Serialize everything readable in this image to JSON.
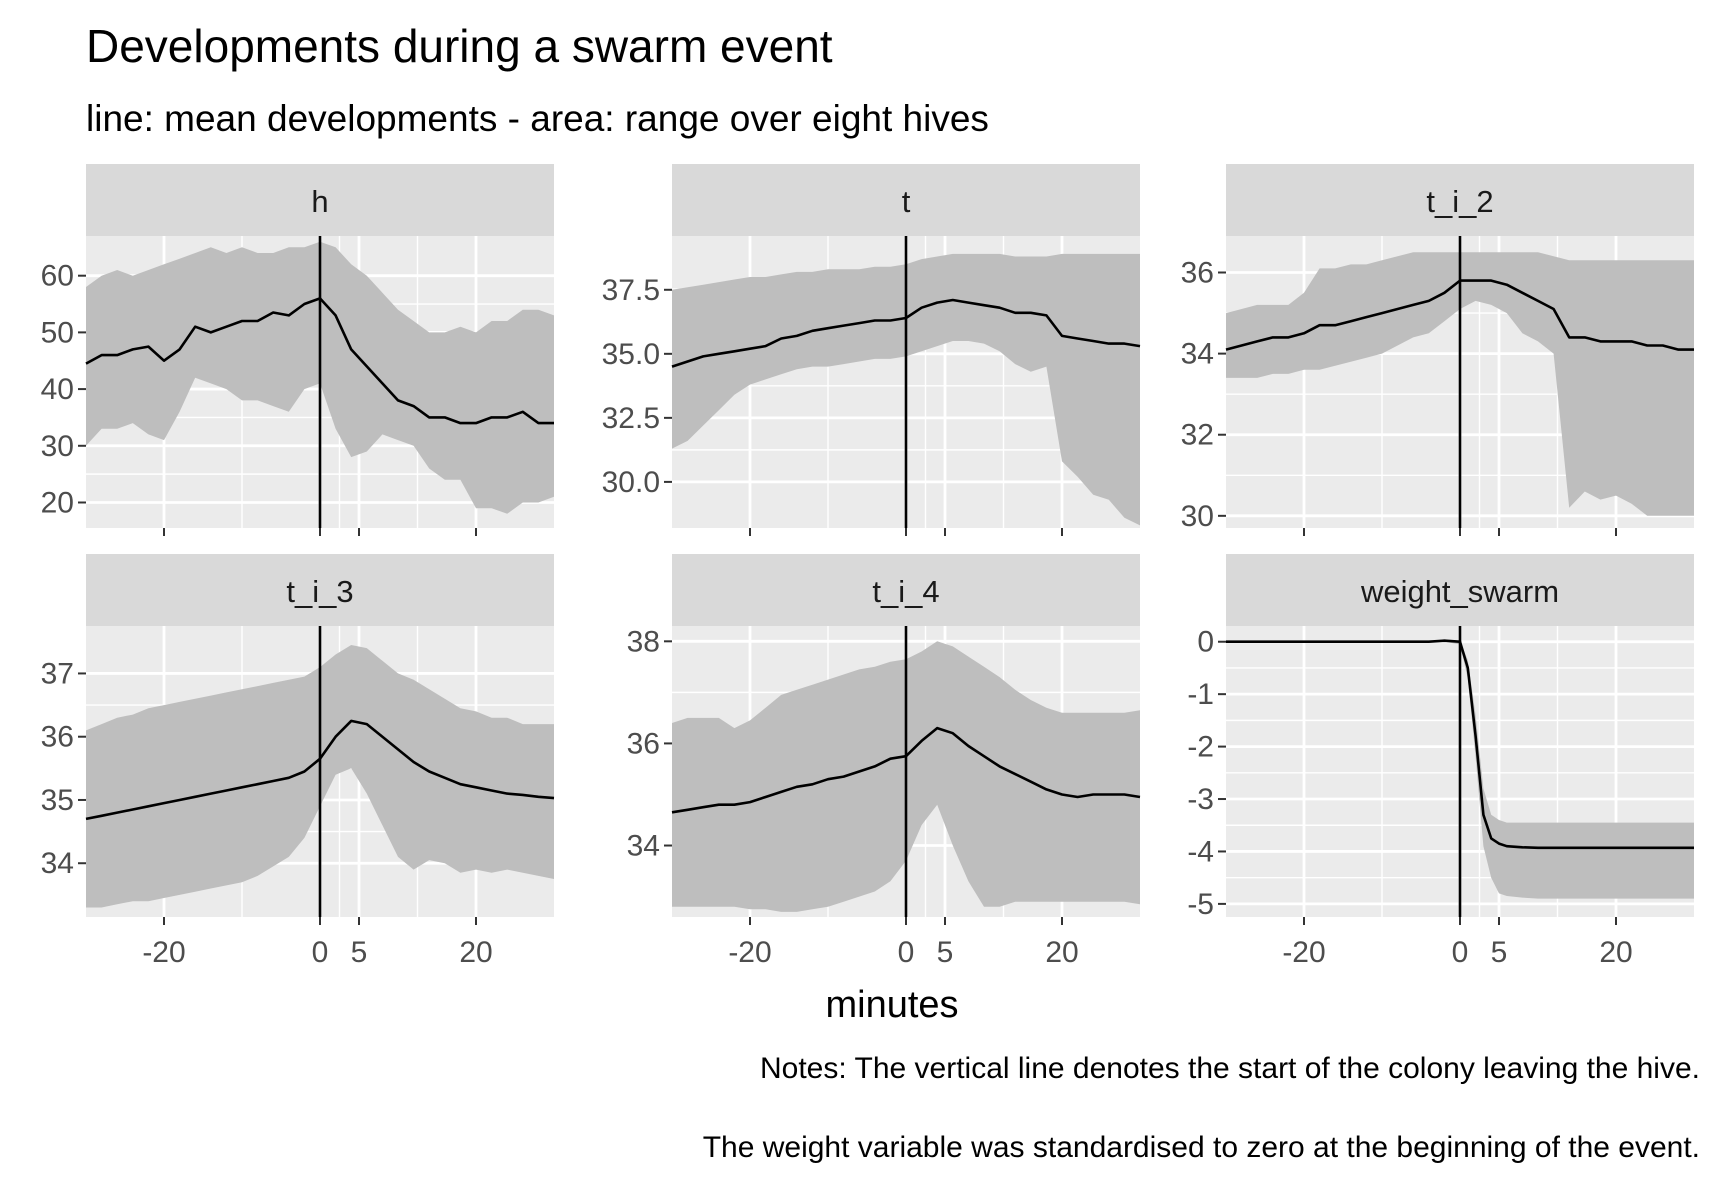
{
  "figure": {
    "title": "Developments during a swarm event",
    "subtitle": "line: mean developments - area: range over eight hives",
    "xlabel": "minutes",
    "notes": [
      "Notes: The vertical line denotes the start of the colony leaving the hive.",
      "The  weight variable was standardised to zero at the beginning of the event."
    ],
    "colors": {
      "panel_bg": "#ebebeb",
      "strip_bg": "#d9d9d9",
      "grid": "#ffffff",
      "ribbon": "#bebebe",
      "line": "#000000",
      "text_ticks": "#4d4d4d"
    }
  },
  "chart_data": [
    {
      "type": "area",
      "facet": "h",
      "xlim": [
        -30,
        30
      ],
      "ylim": [
        15.5,
        67
      ],
      "xticks": [
        -20,
        0,
        5,
        20
      ],
      "yticks": [
        20,
        30,
        40,
        50,
        60
      ],
      "vline": 0,
      "x": [
        -30,
        -28,
        -26,
        -24,
        -22,
        -20,
        -18,
        -16,
        -14,
        -12,
        -10,
        -8,
        -6,
        -4,
        -2,
        0,
        2,
        4,
        6,
        8,
        10,
        12,
        14,
        16,
        18,
        20,
        22,
        24,
        26,
        28,
        30
      ],
      "mean": [
        44.5,
        46,
        46,
        47,
        47.5,
        45,
        47,
        51,
        50,
        51,
        52,
        52,
        53.5,
        53,
        55,
        56,
        53,
        47,
        44,
        41,
        38,
        37,
        35,
        35,
        34,
        34,
        35,
        35,
        36,
        34,
        34
      ],
      "lower": [
        30,
        33,
        33,
        34,
        32,
        31,
        36,
        42,
        41,
        40,
        38,
        38,
        37,
        36,
        40,
        41,
        33,
        28,
        29,
        32,
        31,
        30,
        26,
        24,
        24,
        19,
        19,
        18,
        20,
        20,
        21
      ],
      "upper": [
        58,
        60,
        61,
        60,
        61,
        62,
        63,
        64,
        65,
        64,
        65,
        64,
        64,
        65,
        65,
        66,
        65,
        62,
        60,
        57,
        54,
        52,
        50,
        50,
        51,
        50,
        52,
        52,
        54,
        54,
        53
      ]
    },
    {
      "type": "area",
      "facet": "t",
      "xlim": [
        -30,
        30
      ],
      "ylim": [
        28.2,
        39.6
      ],
      "xticks": [
        -20,
        0,
        5,
        20
      ],
      "yticks": [
        30.0,
        32.5,
        35.0,
        37.5
      ],
      "ytick_labels": [
        "30.0",
        "32.5",
        "35.0",
        "37.5"
      ],
      "vline": 0,
      "x": [
        -30,
        -28,
        -26,
        -24,
        -22,
        -20,
        -18,
        -16,
        -14,
        -12,
        -10,
        -8,
        -6,
        -4,
        -2,
        0,
        2,
        4,
        6,
        8,
        10,
        12,
        14,
        16,
        18,
        20,
        22,
        24,
        26,
        28,
        30
      ],
      "mean": [
        34.5,
        34.7,
        34.9,
        35.0,
        35.1,
        35.2,
        35.3,
        35.6,
        35.7,
        35.9,
        36.0,
        36.1,
        36.2,
        36.3,
        36.3,
        36.4,
        36.8,
        37.0,
        37.1,
        37.0,
        36.9,
        36.8,
        36.6,
        36.6,
        36.5,
        35.7,
        35.6,
        35.5,
        35.4,
        35.4,
        35.3
      ],
      "lower": [
        31.3,
        31.6,
        32.2,
        32.8,
        33.4,
        33.8,
        34.0,
        34.2,
        34.4,
        34.5,
        34.5,
        34.6,
        34.7,
        34.8,
        34.8,
        34.9,
        35.1,
        35.3,
        35.5,
        35.5,
        35.4,
        35.1,
        34.6,
        34.3,
        34.5,
        30.8,
        30.2,
        29.5,
        29.3,
        28.6,
        28.3
      ],
      "upper": [
        37.5,
        37.6,
        37.7,
        37.8,
        37.9,
        38.0,
        38.0,
        38.1,
        38.2,
        38.2,
        38.3,
        38.3,
        38.3,
        38.4,
        38.4,
        38.5,
        38.7,
        38.8,
        38.9,
        38.9,
        38.9,
        38.9,
        38.8,
        38.8,
        38.8,
        38.9,
        38.9,
        38.9,
        38.9,
        38.9,
        38.9
      ]
    },
    {
      "type": "area",
      "facet": "t_i_2",
      "xlim": [
        -30,
        30
      ],
      "ylim": [
        29.7,
        36.9
      ],
      "xticks": [
        -20,
        0,
        5,
        20
      ],
      "yticks": [
        30,
        32,
        34,
        36
      ],
      "vline": 0,
      "x": [
        -30,
        -28,
        -26,
        -24,
        -22,
        -20,
        -18,
        -16,
        -14,
        -12,
        -10,
        -8,
        -6,
        -4,
        -2,
        0,
        2,
        4,
        6,
        8,
        10,
        12,
        14,
        16,
        18,
        20,
        22,
        24,
        26,
        28,
        30
      ],
      "mean": [
        34.1,
        34.2,
        34.3,
        34.4,
        34.4,
        34.5,
        34.7,
        34.7,
        34.8,
        34.9,
        35.0,
        35.1,
        35.2,
        35.3,
        35.5,
        35.8,
        35.8,
        35.8,
        35.7,
        35.5,
        35.3,
        35.1,
        34.4,
        34.4,
        34.3,
        34.3,
        34.3,
        34.2,
        34.2,
        34.1,
        34.1
      ],
      "lower": [
        33.4,
        33.4,
        33.4,
        33.5,
        33.5,
        33.6,
        33.6,
        33.7,
        33.8,
        33.9,
        34.0,
        34.2,
        34.4,
        34.5,
        34.8,
        35.1,
        35.3,
        35.2,
        35.0,
        34.5,
        34.3,
        34.0,
        30.2,
        30.6,
        30.4,
        30.5,
        30.3,
        30.0,
        30.0,
        30.0,
        30.0
      ],
      "upper": [
        35.0,
        35.1,
        35.2,
        35.2,
        35.2,
        35.5,
        36.1,
        36.1,
        36.2,
        36.2,
        36.3,
        36.4,
        36.5,
        36.5,
        36.5,
        36.5,
        36.5,
        36.5,
        36.5,
        36.5,
        36.5,
        36.4,
        36.3,
        36.3,
        36.3,
        36.3,
        36.3,
        36.3,
        36.3,
        36.3,
        36.3
      ]
    },
    {
      "type": "area",
      "facet": "t_i_3",
      "xlim": [
        -30,
        30
      ],
      "ylim": [
        33.15,
        37.75
      ],
      "xticks": [
        -20,
        0,
        5,
        20
      ],
      "yticks": [
        34,
        35,
        36,
        37
      ],
      "vline": 0,
      "x": [
        -30,
        -28,
        -26,
        -24,
        -22,
        -20,
        -18,
        -16,
        -14,
        -12,
        -10,
        -8,
        -6,
        -4,
        -2,
        0,
        2,
        4,
        6,
        8,
        10,
        12,
        14,
        16,
        18,
        20,
        22,
        24,
        26,
        28,
        30
      ],
      "mean": [
        34.7,
        34.75,
        34.8,
        34.85,
        34.9,
        34.95,
        35.0,
        35.05,
        35.1,
        35.15,
        35.2,
        35.25,
        35.3,
        35.35,
        35.45,
        35.65,
        36.0,
        36.25,
        36.2,
        36.0,
        35.8,
        35.6,
        35.45,
        35.35,
        35.25,
        35.2,
        35.15,
        35.1,
        35.08,
        35.05,
        35.03
      ],
      "lower": [
        33.3,
        33.3,
        33.35,
        33.4,
        33.4,
        33.45,
        33.5,
        33.55,
        33.6,
        33.65,
        33.7,
        33.8,
        33.95,
        34.1,
        34.4,
        34.9,
        35.4,
        35.5,
        35.1,
        34.6,
        34.1,
        33.9,
        34.05,
        34.0,
        33.85,
        33.9,
        33.85,
        33.9,
        33.85,
        33.8,
        33.75
      ],
      "upper": [
        36.1,
        36.2,
        36.3,
        36.35,
        36.45,
        36.5,
        36.55,
        36.6,
        36.65,
        36.7,
        36.75,
        36.8,
        36.85,
        36.9,
        36.95,
        37.1,
        37.3,
        37.45,
        37.4,
        37.2,
        37.0,
        36.9,
        36.75,
        36.6,
        36.45,
        36.4,
        36.3,
        36.3,
        36.2,
        36.2,
        36.2
      ]
    },
    {
      "type": "area",
      "facet": "t_i_4",
      "xlim": [
        -30,
        30
      ],
      "ylim": [
        32.6,
        38.3
      ],
      "xticks": [
        -20,
        0,
        5,
        20
      ],
      "yticks": [
        34,
        36,
        38
      ],
      "vline": 0,
      "x": [
        -30,
        -28,
        -26,
        -24,
        -22,
        -20,
        -18,
        -16,
        -14,
        -12,
        -10,
        -8,
        -6,
        -4,
        -2,
        0,
        2,
        4,
        6,
        8,
        10,
        12,
        14,
        16,
        18,
        20,
        22,
        24,
        26,
        28,
        30
      ],
      "mean": [
        34.65,
        34.7,
        34.75,
        34.8,
        34.8,
        34.85,
        34.95,
        35.05,
        35.15,
        35.2,
        35.3,
        35.35,
        35.45,
        35.55,
        35.7,
        35.75,
        36.05,
        36.3,
        36.2,
        35.95,
        35.75,
        35.55,
        35.4,
        35.25,
        35.1,
        35.0,
        34.95,
        35.0,
        35.0,
        35.0,
        34.95
      ],
      "lower": [
        32.8,
        32.8,
        32.8,
        32.8,
        32.8,
        32.75,
        32.75,
        32.7,
        32.7,
        32.75,
        32.8,
        32.9,
        33.0,
        33.1,
        33.3,
        33.7,
        34.4,
        34.8,
        34.0,
        33.3,
        32.8,
        32.8,
        32.9,
        32.9,
        32.9,
        32.9,
        32.9,
        32.9,
        32.9,
        32.9,
        32.85
      ],
      "upper": [
        36.4,
        36.5,
        36.5,
        36.5,
        36.3,
        36.45,
        36.7,
        36.95,
        37.05,
        37.15,
        37.25,
        37.35,
        37.45,
        37.5,
        37.6,
        37.65,
        37.8,
        38.0,
        37.9,
        37.7,
        37.5,
        37.3,
        37.05,
        36.85,
        36.7,
        36.6,
        36.6,
        36.6,
        36.6,
        36.6,
        36.65
      ]
    },
    {
      "type": "area",
      "facet": "weight_swarm",
      "xlim": [
        -30,
        30
      ],
      "ylim": [
        -5.25,
        0.3
      ],
      "xticks": [
        -20,
        0,
        5,
        20
      ],
      "yticks": [
        0,
        -1,
        -2,
        -3,
        -4,
        -5
      ],
      "vline": 0,
      "x": [
        -30,
        -28,
        -26,
        -24,
        -22,
        -20,
        -18,
        -16,
        -14,
        -12,
        -10,
        -8,
        -6,
        -4,
        -2,
        0,
        1,
        2,
        3,
        4,
        5,
        6,
        8,
        10,
        12,
        14,
        16,
        18,
        20,
        22,
        24,
        26,
        28,
        30
      ],
      "mean": [
        0,
        0,
        0,
        0,
        0,
        0,
        0,
        0,
        0,
        0,
        0,
        0,
        0,
        0,
        0.02,
        0,
        -0.5,
        -1.8,
        -3.3,
        -3.75,
        -3.85,
        -3.9,
        -3.92,
        -3.93,
        -3.93,
        -3.93,
        -3.93,
        -3.93,
        -3.93,
        -3.93,
        -3.93,
        -3.93,
        -3.93,
        -3.93
      ],
      "lower": [
        0,
        0,
        0,
        0,
        0,
        0,
        0,
        0,
        0,
        0,
        0,
        0,
        0,
        0,
        0,
        -0.05,
        -0.7,
        -2.2,
        -3.9,
        -4.5,
        -4.8,
        -4.85,
        -4.88,
        -4.9,
        -4.9,
        -4.9,
        -4.9,
        -4.9,
        -4.9,
        -4.9,
        -4.9,
        -4.9,
        -4.9,
        -4.9
      ],
      "upper": [
        0,
        0,
        0,
        0,
        0,
        0,
        0,
        0,
        0,
        0,
        0,
        0,
        0,
        0,
        0.05,
        0.02,
        -0.35,
        -1.4,
        -2.8,
        -3.3,
        -3.4,
        -3.45,
        -3.45,
        -3.45,
        -3.45,
        -3.45,
        -3.45,
        -3.45,
        -3.45,
        -3.45,
        -3.45,
        -3.45,
        -3.45,
        -3.45
      ]
    }
  ]
}
